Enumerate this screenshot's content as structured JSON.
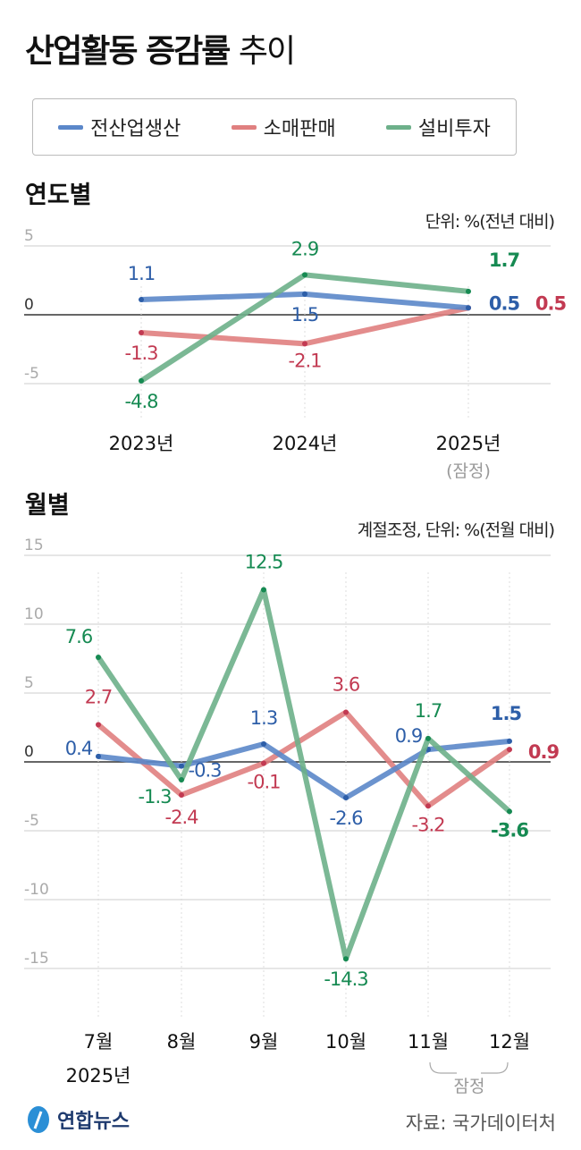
{
  "title": {
    "bold": "산업활동 증감률",
    "light": "추이"
  },
  "legend": [
    {
      "label": "전산업생산",
      "color": "#5b87c9"
    },
    {
      "label": "소매판매",
      "color": "#e08080"
    },
    {
      "label": "설비투자",
      "color": "#6db08a"
    }
  ],
  "label_colors": {
    "전산업생산": "#2d5ea8",
    "소매판매": "#c23a52",
    "설비투자": "#168a52"
  },
  "chart_data": [
    {
      "type": "line",
      "title": "연도별",
      "unit": "단위: %(전년 대비)",
      "categories": [
        "2023년",
        "2024년",
        "2025년"
      ],
      "category_notes": [
        "",
        "",
        "(잠정)"
      ],
      "yticks": [
        5,
        0,
        -5
      ],
      "ylim": [
        -5,
        5
      ],
      "series": [
        {
          "name": "전산업생산",
          "values": [
            1.1,
            1.5,
            0.5
          ]
        },
        {
          "name": "소매판매",
          "values": [
            -1.3,
            -2.1,
            0.5
          ]
        },
        {
          "name": "설비투자",
          "values": [
            -4.8,
            2.9,
            1.7
          ]
        }
      ]
    },
    {
      "type": "line",
      "title": "월별",
      "unit": "계절조정, 단위: %(전월 대비)",
      "categories": [
        "7월",
        "8월",
        "9월",
        "10월",
        "11월",
        "12월"
      ],
      "year_label": "2025년",
      "provisional_label": "잠정",
      "yticks": [
        15,
        10,
        5,
        0,
        -5,
        -10,
        -15
      ],
      "ylim": [
        -15,
        15
      ],
      "series": [
        {
          "name": "전산업생산",
          "values": [
            0.4,
            -0.3,
            1.3,
            -2.6,
            0.9,
            1.5
          ]
        },
        {
          "name": "소매판매",
          "values": [
            2.7,
            -2.4,
            -0.1,
            3.6,
            -3.2,
            0.9
          ]
        },
        {
          "name": "설비투자",
          "values": [
            7.6,
            -1.3,
            12.5,
            -14.3,
            1.7,
            -3.6
          ]
        }
      ]
    }
  ],
  "footer": {
    "logo": "연합뉴스",
    "source": "자료: 국가데이터처"
  }
}
